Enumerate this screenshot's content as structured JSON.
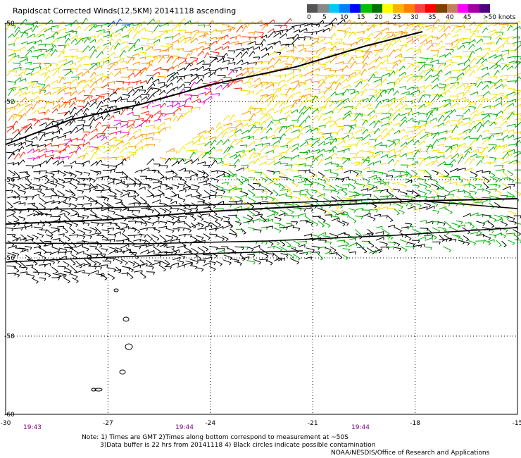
{
  "title": "Rapidscat Corrected Winds(12.5KM) 20141118 ascending",
  "legend": {
    "colors": [
      "#555555",
      "#888888",
      "#00c8ff",
      "#0080ff",
      "#0000ff",
      "#00c000",
      "#007000",
      "#ffff00",
      "#ffb000",
      "#ff8000",
      "#ff4040",
      "#ff0000",
      "#804000",
      "#c08060",
      "#ff00ff",
      "#a000a0",
      "#500080"
    ],
    "labels": [
      "0",
      "5",
      "10",
      "15",
      "20",
      "25",
      "30",
      "35",
      "40",
      "45",
      ">50 knots"
    ],
    "unit": "knots"
  },
  "axes": {
    "lat_ticks": [
      "-50",
      "-52",
      "-54",
      "-56",
      "-58",
      "-60"
    ],
    "lon_ticks": [
      "-30",
      "-27",
      "-24",
      "-21",
      "-18",
      "-15"
    ],
    "lat_range": [
      -60,
      -50
    ],
    "lon_range": [
      -30,
      -15
    ],
    "grid": "dotted"
  },
  "times": [
    "19:43",
    "19:44",
    "19:44"
  ],
  "notes": {
    "line1": "Note: 1) Times are GMT 2)Times along bottom correspond to measurement at ~50S",
    "line2": "3)Data buffer is 22 hrs from 20141118 4) Black circles indicate possible contamination"
  },
  "credit": "NOAA/NESDIS/Office of Research and Applications",
  "map": {
    "land": "South Sandwich Islands",
    "band_colors": {
      "calm": "#000000",
      "light": "#00b000",
      "blue": "#0050ff",
      "yellow": "#f0e000",
      "orange": "#ff9000",
      "red": "#ff2000",
      "magenta": "#e000e0"
    }
  }
}
